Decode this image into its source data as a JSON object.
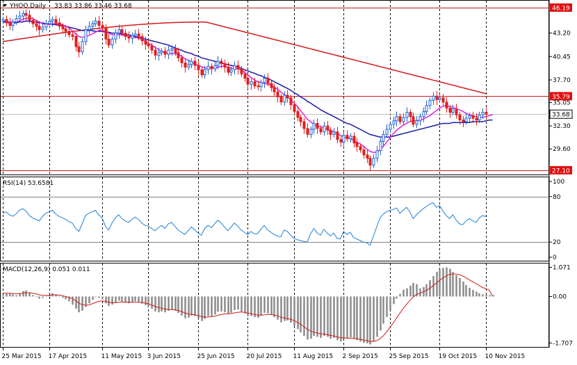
{
  "header": {
    "symbol": "YHOO,Daily",
    "ohlc": "33.83 33.86 33.46 33.68"
  },
  "colors": {
    "background": "#ffffff",
    "bull_candle": "#1e64d6",
    "bear_candle": "#e0201c",
    "ma_fast": "#e020e0",
    "ma_mid": "#1a1aa8",
    "ma_slow": "#d01818",
    "hline": "#c81818",
    "rsi_line": "#1e80d8",
    "macd_hist": "#8a8a8a",
    "macd_signal": "#d01818",
    "price_badge_red": "#e01010",
    "price_badge_white": "#ffffff"
  },
  "chart_data": [
    {
      "type": "candlestick",
      "title": "YHOO,Daily",
      "ylim": [
        26.6,
        47.0
      ],
      "y_ticks": [
        "43.20",
        "40.45",
        "37.70",
        "35.05",
        "32.30",
        "29.60"
      ],
      "x_ticks": [
        "25 Mar 2015",
        "17 Apr 2015",
        "11 May 2015",
        "3 Jun 2015",
        "25 Jun 2015",
        "20 Jul 2015",
        "11 Aug 2015",
        "2 Sep 2015",
        "25 Sep 2015",
        "19 Oct 2015",
        "10 Nov 2015"
      ],
      "horizontal_levels": [
        {
          "value": 46.19,
          "label": "46.19",
          "style": "red"
        },
        {
          "value": 35.79,
          "label": "35.79",
          "style": "red"
        },
        {
          "value": 27.1,
          "label": "27.10",
          "style": "red"
        }
      ],
      "current_price": {
        "value": 33.68,
        "label": "33.68"
      },
      "closes": [
        44.8,
        44.4,
        44.1,
        44.5,
        44.9,
        45.2,
        45.5,
        45.3,
        44.7,
        44.3,
        44.0,
        43.6,
        43.9,
        44.3,
        44.6,
        44.8,
        44.4,
        44.0,
        43.7,
        43.4,
        43.0,
        42.8,
        41.6,
        41.0,
        42.2,
        43.6,
        44.0,
        44.3,
        44.6,
        44.1,
        43.8,
        42.5,
        41.8,
        42.5,
        43.2,
        43.6,
        43.2,
        42.8,
        42.6,
        42.9,
        43.1,
        42.8,
        42.3,
        41.9,
        41.7,
        41.2,
        40.6,
        40.9,
        41.1,
        40.7,
        41.2,
        41.4,
        40.9,
        40.3,
        39.7,
        39.2,
        39.5,
        39.9,
        39.4,
        38.9,
        38.3,
        38.9,
        39.3,
        39.0,
        39.4,
        39.9,
        39.6,
        39.2,
        38.6,
        38.9,
        39.4,
        39.0,
        38.4,
        37.9,
        37.2,
        37.5,
        37.0,
        36.9,
        37.4,
        37.9,
        37.3,
        36.8,
        36.3,
        35.7,
        35.1,
        35.9,
        35.6,
        34.8,
        34.0,
        33.3,
        32.8,
        32.0,
        31.3,
        31.9,
        32.6,
        32.0,
        31.6,
        32.3,
        31.8,
        31.3,
        31.6,
        30.7,
        30.4,
        31.2,
        30.8,
        31.1,
        30.3,
        29.9,
        29.5,
        28.9,
        28.5,
        27.7,
        28.5,
        29.4,
        30.5,
        31.3,
        31.9,
        32.5,
        32.9,
        33.4,
        32.8,
        33.3,
        33.9,
        33.4,
        32.5,
        32.9,
        33.4,
        34.0,
        34.7,
        35.3,
        35.8,
        35.4,
        35.6,
        35.1,
        34.4,
        33.9,
        34.3,
        33.6,
        33.0,
        32.8,
        33.2,
        33.5,
        33.2,
        33.0,
        33.6,
        33.9,
        33.68
      ],
      "ma_fast": [
        44.6,
        44.6,
        44.5,
        44.5,
        44.5,
        44.6,
        44.8,
        44.9,
        45.0,
        44.9,
        44.7,
        44.5,
        44.3,
        44.2,
        44.2,
        44.3,
        44.3,
        44.3,
        44.2,
        44.0,
        43.8,
        43.5,
        43.1,
        42.8,
        42.7,
        42.8,
        42.9,
        43.1,
        43.3,
        43.5,
        43.6,
        43.4,
        43.2,
        43.0,
        43.0,
        43.0,
        43.0,
        42.9,
        42.8,
        42.8,
        42.7,
        42.6,
        42.5,
        42.3,
        42.0,
        41.8,
        41.5,
        41.3,
        41.0,
        40.9,
        40.8,
        40.8,
        40.8,
        40.7,
        40.5,
        40.2,
        40.0,
        39.8,
        39.6,
        39.4,
        39.3,
        39.1,
        39.1,
        39.1,
        39.1,
        39.2,
        39.3,
        39.3,
        39.2,
        39.1,
        39.0,
        39.0,
        38.9,
        38.6,
        38.3,
        38.0,
        37.7,
        37.5,
        37.4,
        37.3,
        37.2,
        37.1,
        36.9,
        36.6,
        36.3,
        36.0,
        35.7,
        35.4,
        35.0,
        34.6,
        34.1,
        33.6,
        33.1,
        32.8,
        32.5,
        32.3,
        32.2,
        32.1,
        31.9,
        31.8,
        31.6,
        31.4,
        31.2,
        31.0,
        30.9,
        30.8,
        30.6,
        30.4,
        30.2,
        29.9,
        29.6,
        29.3,
        29.2,
        29.2,
        29.5,
        29.9,
        30.4,
        30.9,
        31.4,
        31.8,
        32.1,
        32.4,
        32.6,
        32.8,
        32.9,
        32.9,
        33.0,
        33.1,
        33.3,
        33.5,
        33.8,
        34.1,
        34.4,
        34.6,
        34.7,
        34.6,
        34.5,
        34.3,
        34.2,
        34.0,
        33.8,
        33.6,
        33.5,
        33.4,
        33.3,
        33.3,
        33.4,
        33.5,
        33.6
      ],
      "ma_mid": [
        44.5,
        44.5,
        44.4,
        44.4,
        44.4,
        44.5,
        44.5,
        44.6,
        44.6,
        44.5,
        44.5,
        44.4,
        44.4,
        44.3,
        44.3,
        44.2,
        44.2,
        44.1,
        44.1,
        44.0,
        43.9,
        43.8,
        43.7,
        43.6,
        43.5,
        43.5,
        43.5,
        43.5,
        43.4,
        43.4,
        43.4,
        43.3,
        43.3,
        43.2,
        43.2,
        43.2,
        43.1,
        43.0,
        43.0,
        42.9,
        42.8,
        42.7,
        42.6,
        42.5,
        42.4,
        42.3,
        42.2,
        42.1,
        42.0,
        41.9,
        41.8,
        41.6,
        41.5,
        41.3,
        41.2,
        41.0,
        40.9,
        40.8,
        40.6,
        40.5,
        40.3,
        40.2,
        40.1,
        40.0,
        39.9,
        39.8,
        39.7,
        39.6,
        39.5,
        39.4,
        39.3,
        39.2,
        39.1,
        38.9,
        38.8,
        38.6,
        38.5,
        38.3,
        38.2,
        38.0,
        37.9,
        37.7,
        37.5,
        37.3,
        37.1,
        36.9,
        36.7,
        36.5,
        36.2,
        36.0,
        35.7,
        35.5,
        35.2,
        35.0,
        34.7,
        34.5,
        34.2,
        34.0,
        33.8,
        33.6,
        33.4,
        33.2,
        33.0,
        32.8,
        32.6,
        32.5,
        32.3,
        32.1,
        31.9,
        31.7,
        31.5,
        31.3,
        31.2,
        31.1,
        31.0,
        31.0,
        31.0,
        31.0,
        31.1,
        31.2,
        31.3,
        31.4,
        31.5,
        31.6,
        31.7,
        31.8,
        31.9,
        32.0,
        32.1,
        32.2,
        32.3,
        32.4,
        32.5,
        32.6,
        32.6,
        32.6,
        32.7,
        32.7,
        32.7,
        32.7,
        32.7,
        32.7,
        32.8,
        32.8,
        32.8,
        32.8,
        32.9,
        33.0,
        33.0
      ]
    },
    {
      "type": "line",
      "title": "RSI(14) 53.6581",
      "ylim": [
        0,
        100
      ],
      "y_ticks": [
        "100",
        "80",
        "20",
        "0"
      ],
      "levels": [
        80,
        20
      ],
      "values": [
        58,
        60,
        56,
        54,
        57,
        62,
        64,
        61,
        55,
        52,
        50,
        48,
        54,
        58,
        60,
        62,
        57,
        54,
        52,
        50,
        47,
        45,
        38,
        34,
        44,
        55,
        58,
        60,
        62,
        56,
        52,
        41,
        36,
        45,
        52,
        56,
        51,
        48,
        46,
        50,
        53,
        50,
        45,
        42,
        41,
        38,
        35,
        39,
        42,
        38,
        44,
        46,
        41,
        36,
        33,
        30,
        35,
        40,
        36,
        32,
        29,
        38,
        42,
        39,
        44,
        49,
        45,
        40,
        35,
        40,
        45,
        41,
        36,
        33,
        30,
        34,
        31,
        31,
        37,
        42,
        36,
        33,
        30,
        28,
        27,
        36,
        34,
        29,
        25,
        23,
        22,
        21,
        20,
        31,
        38,
        32,
        29,
        37,
        32,
        28,
        32,
        25,
        24,
        34,
        30,
        33,
        26,
        24,
        22,
        20,
        19,
        16,
        28,
        40,
        52,
        57,
        60,
        62,
        63,
        65,
        58,
        62,
        66,
        60,
        51,
        56,
        60,
        64,
        67,
        70,
        72,
        66,
        68,
        61,
        55,
        51,
        56,
        49,
        44,
        43,
        48,
        51,
        48,
        46,
        52,
        55,
        53.66
      ]
    },
    {
      "type": "bar",
      "title": "MACD(12,26,9) 0.051 0.011",
      "ylim": [
        -1.8,
        1.16
      ],
      "y_ticks": [
        "1.071",
        "0.00",
        "-1.707"
      ],
      "values": [
        0.05,
        0.1,
        0.12,
        0.08,
        0.05,
        0.12,
        0.2,
        0.22,
        0.15,
        0.05,
        -0.02,
        -0.08,
        -0.05,
        0.02,
        0.08,
        0.12,
        0.08,
        0.02,
        -0.05,
        -0.1,
        -0.18,
        -0.3,
        -0.45,
        -0.58,
        -0.52,
        -0.38,
        -0.25,
        -0.12,
        -0.02,
        -0.05,
        -0.1,
        -0.25,
        -0.35,
        -0.3,
        -0.22,
        -0.15,
        -0.18,
        -0.22,
        -0.25,
        -0.22,
        -0.18,
        -0.2,
        -0.26,
        -0.32,
        -0.38,
        -0.45,
        -0.55,
        -0.58,
        -0.55,
        -0.58,
        -0.52,
        -0.48,
        -0.52,
        -0.6,
        -0.7,
        -0.8,
        -0.78,
        -0.7,
        -0.72,
        -0.8,
        -0.9,
        -0.82,
        -0.72,
        -0.72,
        -0.66,
        -0.56,
        -0.55,
        -0.58,
        -0.65,
        -0.6,
        -0.5,
        -0.48,
        -0.55,
        -0.62,
        -0.72,
        -0.72,
        -0.76,
        -0.78,
        -0.7,
        -0.6,
        -0.62,
        -0.68,
        -0.76,
        -0.85,
        -0.95,
        -0.9,
        -0.88,
        -0.96,
        -1.08,
        -1.2,
        -1.32,
        -1.45,
        -1.58,
        -1.55,
        -1.45,
        -1.48,
        -1.52,
        -1.45,
        -1.48,
        -1.55,
        -1.52,
        -1.6,
        -1.65,
        -1.55,
        -1.55,
        -1.5,
        -1.56,
        -1.6,
        -1.65,
        -1.7,
        -1.72,
        -1.76,
        -1.65,
        -1.48,
        -1.25,
        -1.0,
        -0.75,
        -0.5,
        -0.28,
        -0.08,
        0.1,
        0.25,
        0.3,
        0.4,
        0.5,
        0.45,
        0.3,
        0.35,
        0.45,
        0.6,
        0.75,
        0.9,
        1.0,
        1.05,
        1.07,
        1.02,
        0.9,
        0.78,
        0.68,
        0.55,
        0.42,
        0.32,
        0.24,
        0.18,
        0.12,
        0.08,
        0.06,
        0.05,
        0.051
      ],
      "signal": [
        0.12,
        0.12,
        0.12,
        0.11,
        0.1,
        0.1,
        0.12,
        0.14,
        0.14,
        0.12,
        0.1,
        0.06,
        0.04,
        0.04,
        0.04,
        0.06,
        0.06,
        0.05,
        0.03,
        0.0,
        -0.03,
        -0.08,
        -0.15,
        -0.24,
        -0.3,
        -0.32,
        -0.31,
        -0.27,
        -0.22,
        -0.18,
        -0.16,
        -0.18,
        -0.21,
        -0.23,
        -0.23,
        -0.21,
        -0.2,
        -0.21,
        -0.21,
        -0.21,
        -0.21,
        -0.21,
        -0.22,
        -0.24,
        -0.27,
        -0.31,
        -0.36,
        -0.4,
        -0.43,
        -0.46,
        -0.48,
        -0.48,
        -0.49,
        -0.51,
        -0.55,
        -0.6,
        -0.64,
        -0.66,
        -0.67,
        -0.7,
        -0.74,
        -0.76,
        -0.75,
        -0.74,
        -0.72,
        -0.69,
        -0.66,
        -0.64,
        -0.64,
        -0.63,
        -0.6,
        -0.58,
        -0.57,
        -0.58,
        -0.61,
        -0.63,
        -0.66,
        -0.68,
        -0.69,
        -0.67,
        -0.66,
        -0.66,
        -0.68,
        -0.71,
        -0.76,
        -0.79,
        -0.81,
        -0.84,
        -0.88,
        -0.95,
        -1.02,
        -1.11,
        -1.2,
        -1.27,
        -1.31,
        -1.34,
        -1.37,
        -1.38,
        -1.4,
        -1.43,
        -1.45,
        -1.48,
        -1.51,
        -1.52,
        -1.53,
        -1.53,
        -1.54,
        -1.55,
        -1.57,
        -1.6,
        -1.62,
        -1.65,
        -1.65,
        -1.62,
        -1.55,
        -1.44,
        -1.3,
        -1.14,
        -0.97,
        -0.79,
        -0.61,
        -0.44,
        -0.29,
        -0.15,
        -0.02,
        0.07,
        0.12,
        0.17,
        0.22,
        0.3,
        0.39,
        0.49,
        0.59,
        0.68,
        0.76,
        0.81,
        0.83,
        0.82,
        0.8,
        0.75,
        0.69,
        0.61,
        0.54,
        0.47,
        0.4,
        0.33,
        0.28,
        0.23,
        0.011
      ]
    }
  ]
}
